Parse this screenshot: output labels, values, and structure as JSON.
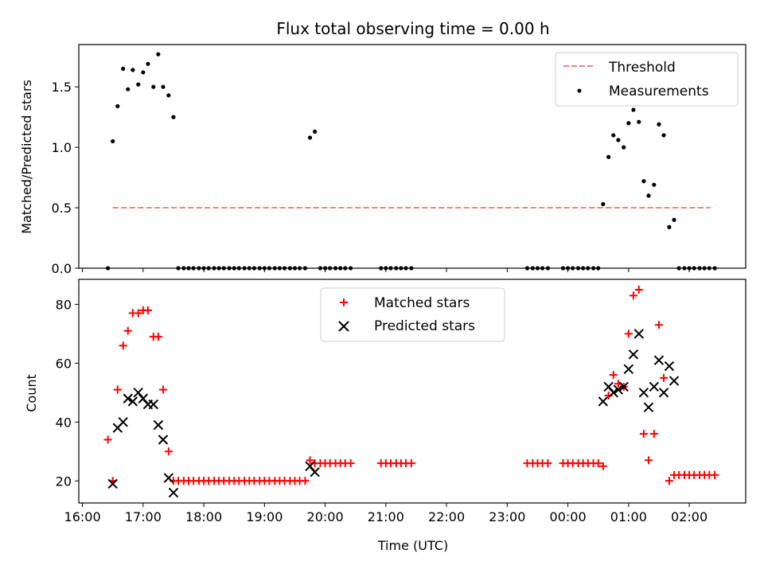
{
  "figure": {
    "title": "Flux total observing time = 0.00 h",
    "xlabel": "Time (UTC)"
  },
  "chart_data": [
    {
      "type": "scatter",
      "ylabel": "Matched/Predicted stars",
      "ylim": [
        0,
        1.85
      ],
      "yticks": [
        0.0,
        0.5,
        1.0,
        1.5
      ],
      "ytick_labels": [
        "0.0",
        "0.5",
        "1.0",
        "1.5"
      ],
      "xlim_hours": [
        15.94,
        26.93
      ],
      "legend_position": "upper right",
      "series": [
        {
          "name": "Threshold",
          "kind": "line",
          "style": "dashed",
          "color": "#ff7f7f",
          "x": [
            16.5,
            26.35
          ],
          "y": [
            0.5,
            0.5
          ]
        },
        {
          "name": "Measurements",
          "kind": "points",
          "marker": "dot",
          "color": "#000000",
          "x": [
            16.42,
            16.5,
            16.58,
            16.67,
            16.75,
            16.83,
            16.92,
            17.0,
            17.08,
            17.17,
            17.25,
            17.33,
            17.42,
            17.5,
            17.58,
            17.67,
            17.75,
            17.83,
            17.92,
            18.0,
            18.08,
            18.17,
            18.25,
            18.33,
            18.42,
            18.5,
            18.58,
            18.67,
            18.75,
            18.83,
            18.92,
            19.0,
            19.08,
            19.17,
            19.25,
            19.33,
            19.42,
            19.5,
            19.58,
            19.67,
            19.75,
            19.83,
            19.92,
            20.0,
            20.08,
            20.17,
            20.25,
            20.33,
            20.42,
            20.92,
            21.0,
            21.08,
            21.17,
            21.25,
            21.33,
            21.42,
            23.33,
            23.42,
            23.5,
            23.58,
            23.67,
            23.92,
            24.0,
            24.08,
            24.17,
            24.25,
            24.33,
            24.42,
            24.5,
            24.58,
            24.67,
            24.75,
            24.83,
            24.92,
            25.0,
            25.08,
            25.17,
            25.25,
            25.33,
            25.42,
            25.5,
            25.58,
            25.67,
            25.75,
            25.83,
            25.92,
            26.0,
            26.08,
            26.17,
            26.25,
            26.33,
            26.42
          ],
          "y": [
            0.0,
            1.05,
            1.34,
            1.65,
            1.48,
            1.64,
            1.52,
            1.62,
            1.69,
            1.5,
            1.77,
            1.5,
            1.43,
            1.25,
            0.0,
            0.0,
            0.0,
            0.0,
            0.0,
            0.0,
            0.0,
            0.0,
            0.0,
            0.0,
            0.0,
            0.0,
            0.0,
            0.0,
            0.0,
            0.0,
            0.0,
            0.0,
            0.0,
            0.0,
            0.0,
            0.0,
            0.0,
            0.0,
            0.0,
            0.0,
            1.08,
            1.13,
            0.0,
            0.0,
            0.0,
            0.0,
            0.0,
            0.0,
            0.0,
            0.0,
            0.0,
            0.0,
            0.0,
            0.0,
            0.0,
            0.0,
            0.0,
            0.0,
            0.0,
            0.0,
            0.0,
            0.0,
            0.0,
            0.0,
            0.0,
            0.0,
            0.0,
            0.0,
            0.0,
            0.53,
            0.92,
            1.1,
            1.06,
            1.0,
            1.2,
            1.31,
            1.21,
            0.72,
            0.6,
            0.69,
            1.19,
            1.1,
            0.34,
            0.4,
            0.0,
            0.0,
            0.0,
            0.0,
            0.0,
            0.0,
            0.0,
            0.0
          ]
        }
      ]
    },
    {
      "type": "scatter",
      "ylabel": "Count",
      "ylim": [
        12.5,
        88.5
      ],
      "yticks": [
        20,
        40,
        60,
        80
      ],
      "ytick_labels": [
        "20",
        "40",
        "60",
        "80"
      ],
      "xlim_hours": [
        15.94,
        26.93
      ],
      "xticks_hours": [
        16,
        17,
        18,
        19,
        20,
        21,
        22,
        23,
        24,
        25,
        26
      ],
      "xtick_labels": [
        "16:00",
        "17:00",
        "18:00",
        "19:00",
        "20:00",
        "21:00",
        "22:00",
        "23:00",
        "00:00",
        "01:00",
        "02:00"
      ],
      "legend_position": "upper center",
      "series": [
        {
          "name": "Matched stars",
          "kind": "points",
          "marker": "plus",
          "color": "#ff0000",
          "x": [
            16.42,
            16.5,
            16.58,
            16.67,
            16.75,
            16.83,
            16.92,
            17.0,
            17.08,
            17.17,
            17.25,
            17.33,
            17.42,
            17.5,
            17.58,
            17.67,
            17.75,
            17.83,
            17.92,
            18.0,
            18.08,
            18.17,
            18.25,
            18.33,
            18.42,
            18.5,
            18.58,
            18.67,
            18.75,
            18.83,
            18.92,
            19.0,
            19.08,
            19.17,
            19.25,
            19.33,
            19.42,
            19.5,
            19.58,
            19.67,
            19.75,
            19.83,
            19.92,
            20.0,
            20.08,
            20.17,
            20.25,
            20.33,
            20.42,
            20.92,
            21.0,
            21.08,
            21.17,
            21.25,
            21.33,
            21.42,
            23.33,
            23.42,
            23.5,
            23.58,
            23.67,
            23.92,
            24.0,
            24.08,
            24.17,
            24.25,
            24.33,
            24.42,
            24.5,
            24.58,
            24.67,
            24.75,
            24.83,
            24.92,
            25.0,
            25.08,
            25.17,
            25.25,
            25.33,
            25.42,
            25.5,
            25.58,
            25.67,
            25.75,
            25.83,
            25.92,
            26.0,
            26.08,
            26.17,
            26.25,
            26.33,
            26.42
          ],
          "y": [
            34,
            20,
            51,
            66,
            71,
            77,
            77,
            78,
            78,
            69,
            69,
            51,
            30,
            20,
            20,
            20,
            20,
            20,
            20,
            20,
            20,
            20,
            20,
            20,
            20,
            20,
            20,
            20,
            20,
            20,
            20,
            20,
            20,
            20,
            20,
            20,
            20,
            20,
            20,
            20,
            27,
            26,
            26,
            26,
            26,
            26,
            26,
            26,
            26,
            26,
            26,
            26,
            26,
            26,
            26,
            26,
            26,
            26,
            26,
            26,
            26,
            26,
            26,
            26,
            26,
            26,
            26,
            26,
            26,
            25,
            49,
            56,
            53,
            52,
            70,
            83,
            85,
            36,
            27,
            36,
            73,
            55,
            20,
            22,
            22,
            22,
            22,
            22,
            22,
            22,
            22,
            22
          ]
        },
        {
          "name": "Predicted stars",
          "kind": "points",
          "marker": "x",
          "color": "#000000",
          "x": [
            16.5,
            16.58,
            16.67,
            16.75,
            16.83,
            16.92,
            17.0,
            17.08,
            17.17,
            17.25,
            17.33,
            17.42,
            17.5,
            19.75,
            19.83,
            24.58,
            24.67,
            24.75,
            24.83,
            24.92,
            25.0,
            25.08,
            25.17,
            25.25,
            25.33,
            25.42,
            25.5,
            25.58,
            25.67,
            25.75
          ],
          "y": [
            19,
            38,
            40,
            48,
            47,
            50,
            48,
            46,
            46,
            39,
            34,
            21,
            16,
            25,
            23,
            47,
            52,
            50,
            51,
            52,
            58,
            63,
            70,
            50,
            45,
            52,
            61,
            50,
            59,
            54
          ]
        }
      ]
    }
  ]
}
